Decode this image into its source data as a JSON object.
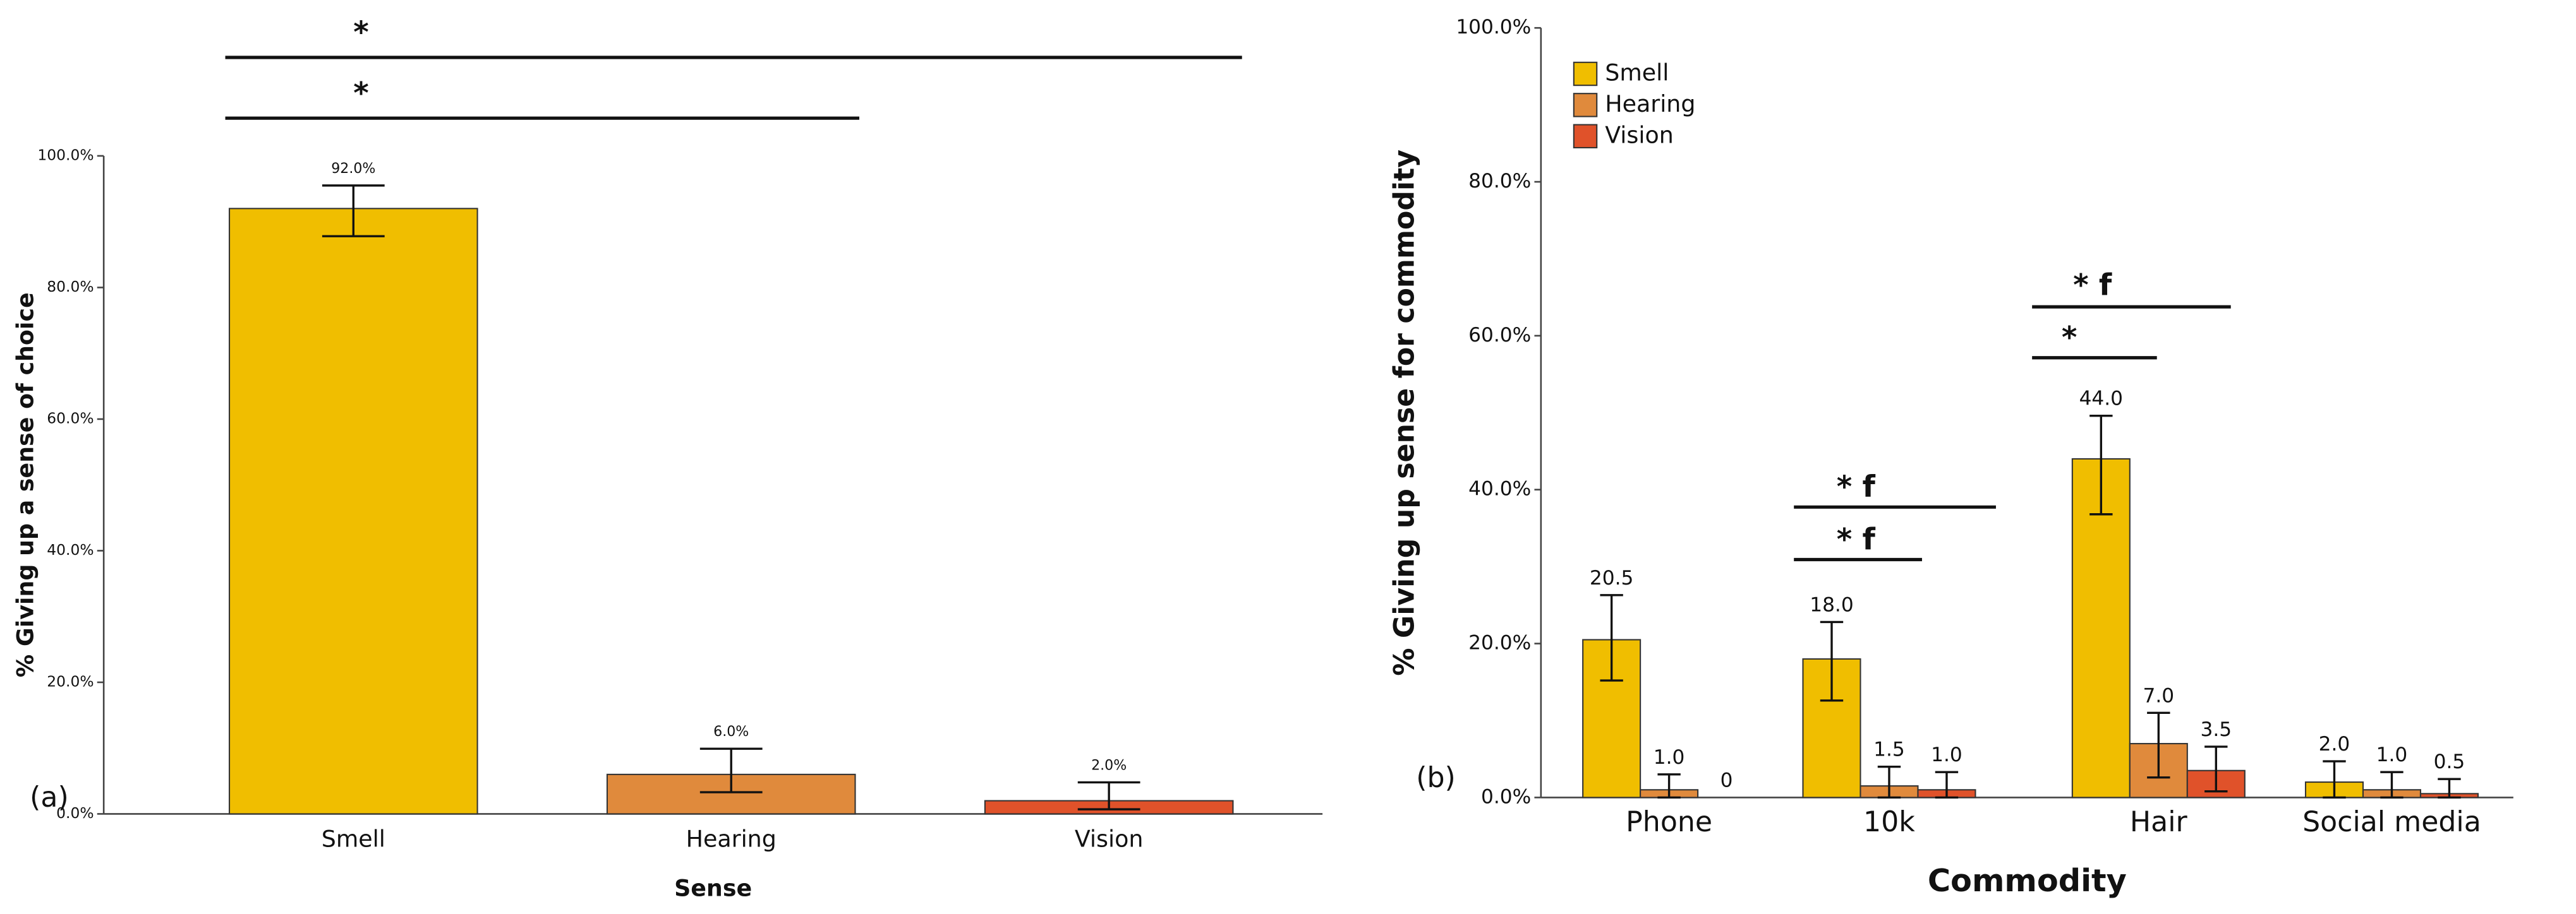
{
  "chart_data": [
    {
      "type": "bar",
      "panel": "(a)",
      "xlabel": "Sense",
      "ylabel": "% Giving up a sense of choice",
      "categories": [
        "Smell",
        "Hearing",
        "Vision"
      ],
      "values": [
        92,
        6,
        2
      ],
      "value_labels": [
        "92.0%",
        "6.0%",
        "2.0%"
      ],
      "error_low": [
        87.8,
        3.3,
        0.7
      ],
      "error_high": [
        95.5,
        9.9,
        4.8
      ],
      "colors": [
        "#f0be00",
        "#e08a3c",
        "#e0522a"
      ],
      "ylim": [
        0,
        100
      ],
      "yticks": [
        {
          "value": 0,
          "label": "0.0%"
        },
        {
          "value": 20,
          "label": "20.0%"
        },
        {
          "value": 40,
          "label": "40.0%"
        },
        {
          "value": 60,
          "label": "60.0%"
        },
        {
          "value": 80,
          "label": "80.0%"
        },
        {
          "value": 100,
          "label": "100.0%"
        }
      ],
      "annotations": [
        "*",
        "*"
      ]
    },
    {
      "type": "grouped-bar",
      "panel": "(b)",
      "xlabel": "Commodity",
      "ylabel": "% Giving up sense for commodity",
      "categories": [
        "Phone",
        "10k",
        "Hair",
        "Social media"
      ],
      "series": [
        {
          "name": "Smell",
          "color": "#f0be00",
          "values": [
            20.5,
            18,
            44,
            2
          ],
          "value_labels": [
            "20.5",
            "18.0",
            "44.0",
            "2.0"
          ],
          "error_low": [
            15.2,
            12.6,
            36.8,
            0
          ],
          "error_high": [
            26.3,
            22.8,
            49.6,
            4.7
          ]
        },
        {
          "name": "Hearing",
          "color": "#e08a3c",
          "values": [
            1,
            1.5,
            7,
            1
          ],
          "value_labels": [
            "1.0",
            "1.5",
            "7.0",
            "1.0"
          ],
          "error_low": [
            0,
            0,
            2.6,
            0
          ],
          "error_high": [
            3,
            4,
            11,
            3.3
          ]
        },
        {
          "name": "Vision",
          "color": "#e0522a",
          "values": [
            0,
            1,
            3.5,
            0.5
          ],
          "value_labels": [
            "0",
            "1.0",
            "3.5",
            "0.5"
          ],
          "error_low": [
            null,
            0,
            0.8,
            0
          ],
          "error_high": [
            null,
            3.3,
            6.6,
            2.4
          ]
        }
      ],
      "ylim": [
        0,
        100
      ],
      "yticks": [
        {
          "value": 0,
          "label": "0.0%"
        },
        {
          "value": 20,
          "label": "20.0%"
        },
        {
          "value": 40,
          "label": "40.0%"
        },
        {
          "value": 60,
          "label": "60.0%"
        },
        {
          "value": 80,
          "label": "80.0%"
        },
        {
          "value": 100,
          "label": "100.0%"
        }
      ],
      "legend": "top-left",
      "annotations": [
        "* f",
        "* f",
        "* f",
        "*"
      ]
    }
  ]
}
